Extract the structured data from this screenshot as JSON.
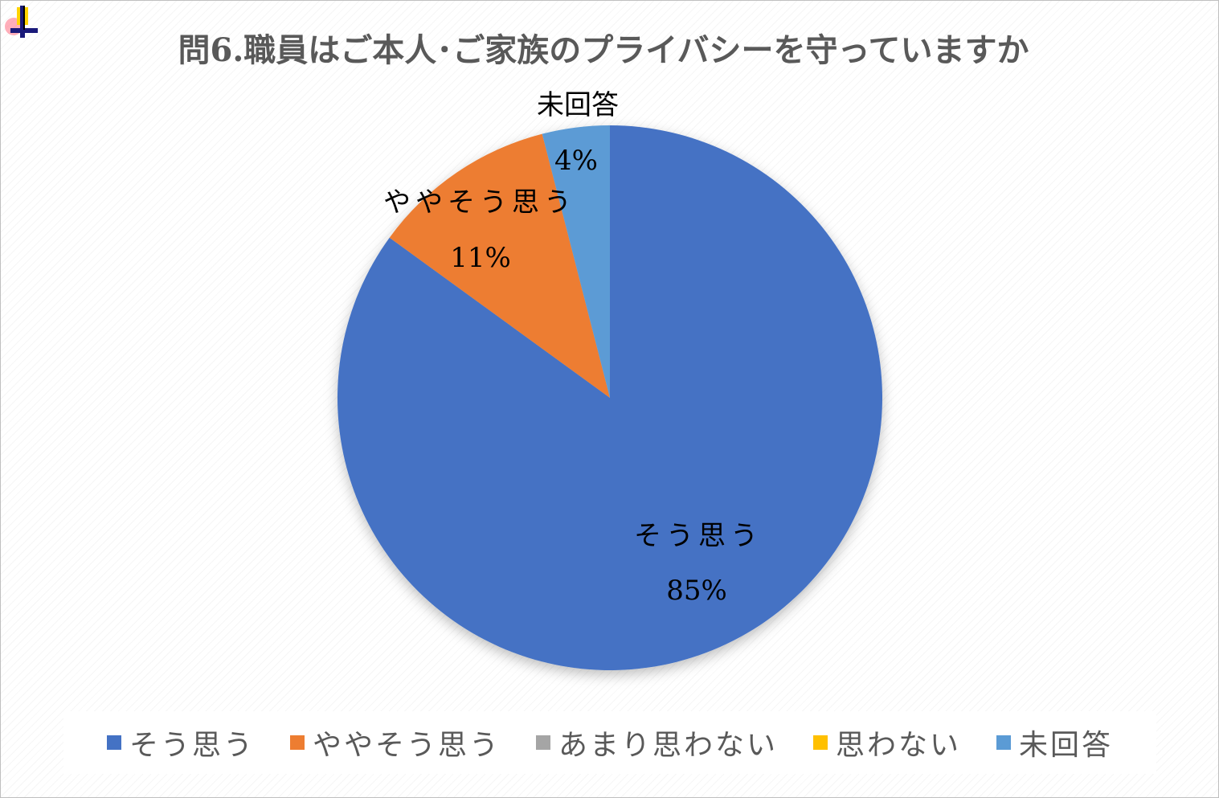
{
  "chart_data": {
    "type": "pie",
    "title": "問6.職員はご本人･ご家族のプライバシーを守っていますか",
    "categories": [
      "そう思う",
      "ややそう思う",
      "あまり思わない",
      "思わない",
      "未回答"
    ],
    "values": [
      85,
      11,
      0,
      0,
      4
    ],
    "value_labels": [
      "85%",
      "11%",
      "",
      "",
      "4%"
    ],
    "colors": [
      "#4472C4",
      "#ED7D31",
      "#A5A5A5",
      "#FFC000",
      "#5B9BD5"
    ],
    "legend_position": "bottom"
  },
  "icons": {
    "corner": "chart-move-handle-icon"
  }
}
